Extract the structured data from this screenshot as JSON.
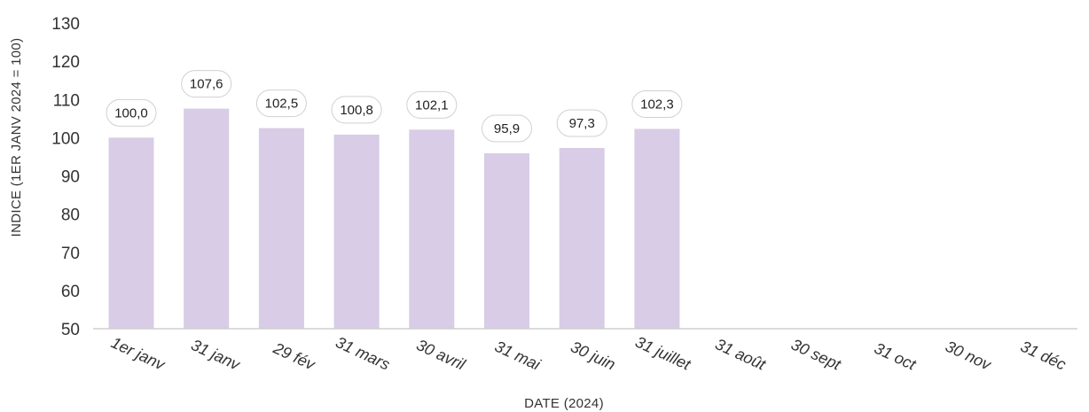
{
  "chart_data": {
    "type": "bar",
    "categories": [
      "1er janv",
      "31 janv",
      "29 fév",
      "31 mars",
      "30 avril",
      "31 mai",
      "30 juin",
      "31 juillet",
      "31 août",
      "30 sept",
      "31 oct",
      "30 nov",
      "31 déc"
    ],
    "values": [
      100.0,
      107.6,
      102.5,
      100.8,
      102.1,
      95.9,
      97.3,
      102.3,
      null,
      null,
      null,
      null,
      null
    ],
    "data_labels": [
      "100,0",
      "107,6",
      "102,5",
      "100,8",
      "102,1",
      "95,9",
      "97,3",
      "102,3",
      "",
      "",
      "",
      "",
      ""
    ],
    "y_ticks": [
      "50",
      "60",
      "70",
      "80",
      "90",
      "100",
      "110",
      "120",
      "130"
    ],
    "ylim": [
      50,
      130
    ],
    "xlabel": "DATE (2024)",
    "ylabel": "INDICE (1ER JANV 2024 = 100)",
    "grid": false,
    "bar_color": "#d8cce6",
    "axis_color": "#cfcfcf"
  }
}
